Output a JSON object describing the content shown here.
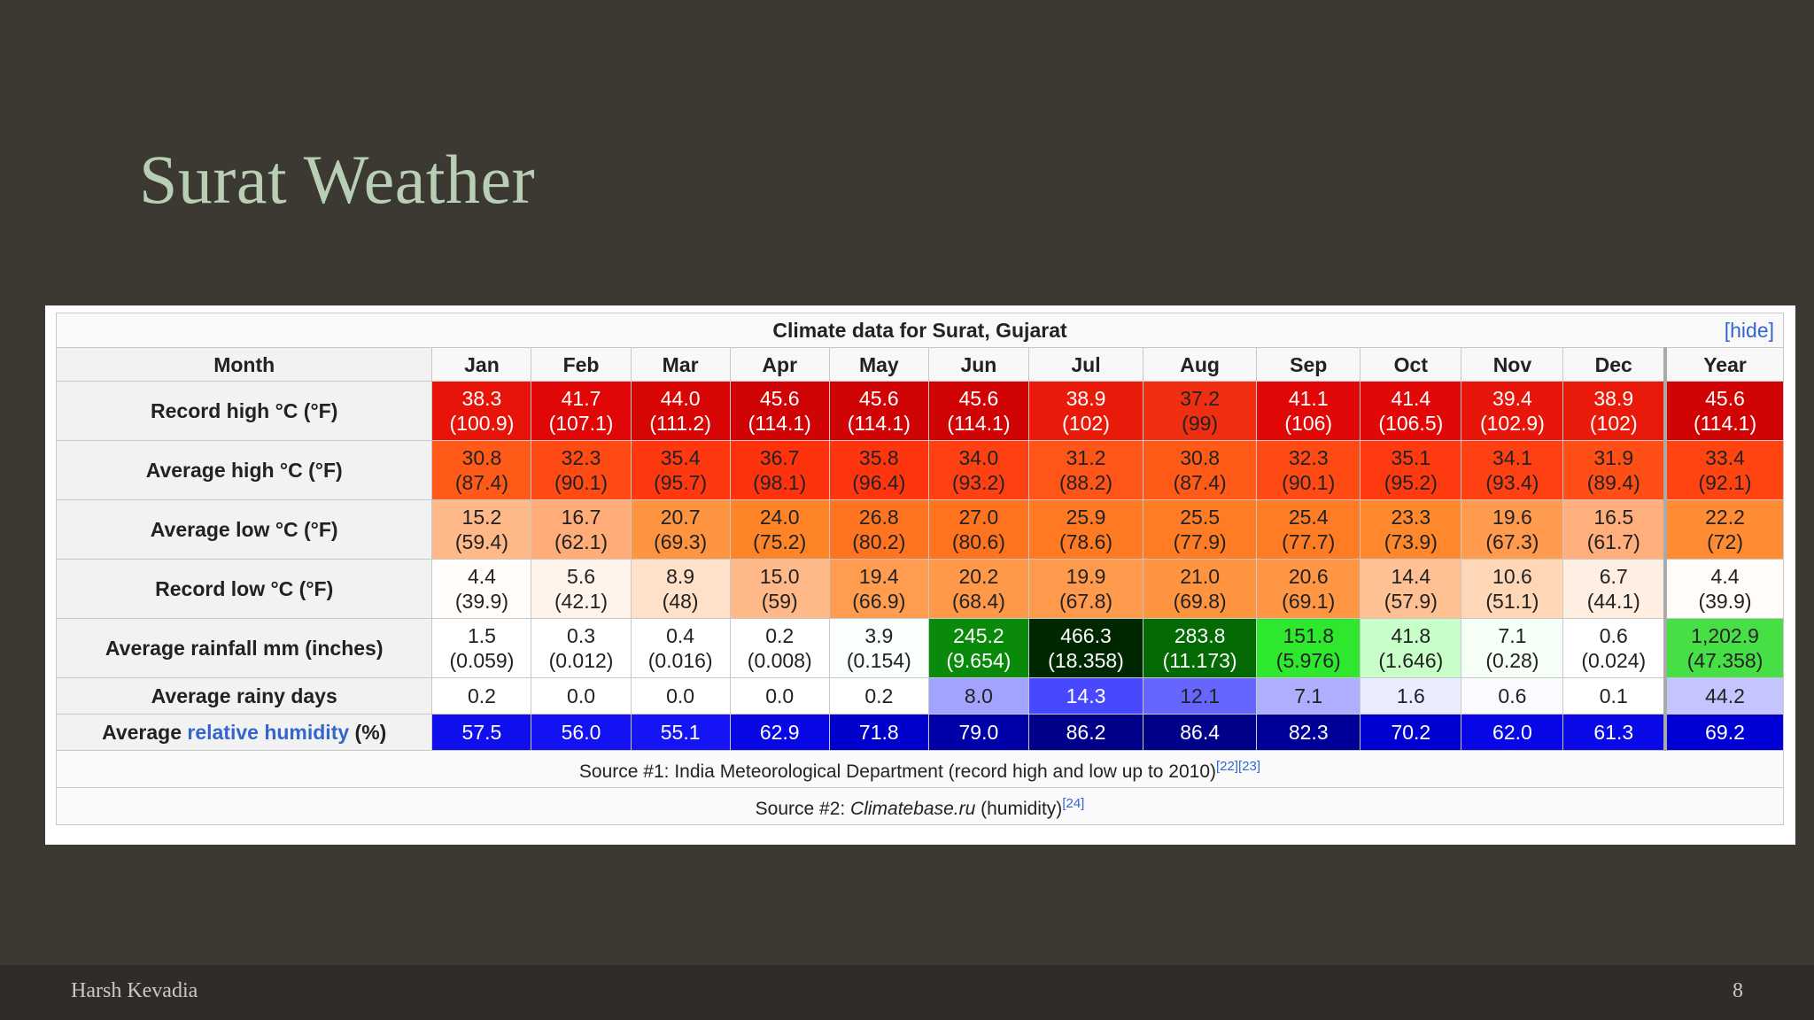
{
  "slide": {
    "title": "Surat Weather",
    "footer_author": "Harsh Kevadia",
    "page_number": "8"
  },
  "table": {
    "caption": "Climate data for Surat, Gujarat",
    "hide_label": "[hide]",
    "header": [
      "Month",
      "Jan",
      "Feb",
      "Mar",
      "Apr",
      "May",
      "Jun",
      "Jul",
      "Aug",
      "Sep",
      "Oct",
      "Nov",
      "Dec",
      "Year"
    ],
    "rows": [
      {
        "label": "Record high °C (°F)",
        "cells": [
          {
            "c": "38.3",
            "f": "(100.9)",
            "bg": "#e8140a",
            "fg": "#ffffff"
          },
          {
            "c": "41.7",
            "f": "(107.1)",
            "bg": "#e10707",
            "fg": "#ffffff"
          },
          {
            "c": "44.0",
            "f": "(111.2)",
            "bg": "#d80505",
            "fg": "#ffffff"
          },
          {
            "c": "45.6",
            "f": "(114.1)",
            "bg": "#d00404",
            "fg": "#ffffff"
          },
          {
            "c": "45.6",
            "f": "(114.1)",
            "bg": "#d00404",
            "fg": "#ffffff"
          },
          {
            "c": "45.6",
            "f": "(114.1)",
            "bg": "#d00404",
            "fg": "#ffffff"
          },
          {
            "c": "38.9",
            "f": "(102)",
            "bg": "#ea1a0a",
            "fg": "#ffffff"
          },
          {
            "c": "37.2",
            "f": "(99)",
            "bg": "#f02e12",
            "fg": "#222222"
          },
          {
            "c": "41.1",
            "f": "(106)",
            "bg": "#e20808",
            "fg": "#ffffff"
          },
          {
            "c": "41.4",
            "f": "(106.5)",
            "bg": "#e20808",
            "fg": "#ffffff"
          },
          {
            "c": "39.4",
            "f": "(102.9)",
            "bg": "#e8150a",
            "fg": "#ffffff"
          },
          {
            "c": "38.9",
            "f": "(102)",
            "bg": "#ea1a0a",
            "fg": "#ffffff"
          },
          {
            "c": "45.6",
            "f": "(114.1)",
            "bg": "#d00404",
            "fg": "#ffffff"
          }
        ]
      },
      {
        "label": "Average high °C (°F)",
        "cells": [
          {
            "c": "30.8",
            "f": "(87.4)",
            "bg": "#ff5a18",
            "fg": "#222222"
          },
          {
            "c": "32.3",
            "f": "(90.1)",
            "bg": "#ff4a14",
            "fg": "#222222"
          },
          {
            "c": "35.4",
            "f": "(95.7)",
            "bg": "#ff3810",
            "fg": "#222222"
          },
          {
            "c": "36.7",
            "f": "(98.1)",
            "bg": "#ff320e",
            "fg": "#222222"
          },
          {
            "c": "35.8",
            "f": "(96.4)",
            "bg": "#ff3510",
            "fg": "#222222"
          },
          {
            "c": "34.0",
            "f": "(93.2)",
            "bg": "#ff4012",
            "fg": "#222222"
          },
          {
            "c": "31.2",
            "f": "(88.2)",
            "bg": "#ff5518",
            "fg": "#222222"
          },
          {
            "c": "30.8",
            "f": "(87.4)",
            "bg": "#ff5a18",
            "fg": "#222222"
          },
          {
            "c": "32.3",
            "f": "(90.1)",
            "bg": "#ff4a14",
            "fg": "#222222"
          },
          {
            "c": "35.1",
            "f": "(95.2)",
            "bg": "#ff3a10",
            "fg": "#222222"
          },
          {
            "c": "34.1",
            "f": "(93.4)",
            "bg": "#ff4012",
            "fg": "#222222"
          },
          {
            "c": "31.9",
            "f": "(89.4)",
            "bg": "#ff4e16",
            "fg": "#222222"
          },
          {
            "c": "33.4",
            "f": "(92.1)",
            "bg": "#ff4412",
            "fg": "#222222"
          }
        ]
      },
      {
        "label": "Average low °C (°F)",
        "cells": [
          {
            "c": "15.2",
            "f": "(59.4)",
            "bg": "#ffb888",
            "fg": "#222222"
          },
          {
            "c": "16.7",
            "f": "(62.1)",
            "bg": "#ffac78",
            "fg": "#222222"
          },
          {
            "c": "20.7",
            "f": "(69.3)",
            "bg": "#ff9440",
            "fg": "#222222"
          },
          {
            "c": "24.0",
            "f": "(75.2)",
            "bg": "#ff8428",
            "fg": "#222222"
          },
          {
            "c": "26.8",
            "f": "(80.2)",
            "bg": "#ff7420",
            "fg": "#222222"
          },
          {
            "c": "27.0",
            "f": "(80.6)",
            "bg": "#ff721e",
            "fg": "#222222"
          },
          {
            "c": "25.9",
            "f": "(78.6)",
            "bg": "#ff7a22",
            "fg": "#222222"
          },
          {
            "c": "25.5",
            "f": "(77.9)",
            "bg": "#ff7c24",
            "fg": "#222222"
          },
          {
            "c": "25.4",
            "f": "(77.7)",
            "bg": "#ff7c24",
            "fg": "#222222"
          },
          {
            "c": "23.3",
            "f": "(73.9)",
            "bg": "#ff882c",
            "fg": "#222222"
          },
          {
            "c": "19.6",
            "f": "(67.3)",
            "bg": "#ff9a4e",
            "fg": "#222222"
          },
          {
            "c": "16.5",
            "f": "(61.7)",
            "bg": "#ffae7c",
            "fg": "#222222"
          },
          {
            "c": "22.2",
            "f": "(72)",
            "bg": "#ff8c32",
            "fg": "#222222"
          }
        ]
      },
      {
        "label": "Record low °C (°F)",
        "cells": [
          {
            "c": "4.4",
            "f": "(39.9)",
            "bg": "#fffcfa",
            "fg": "#222222"
          },
          {
            "c": "5.6",
            "f": "(42.1)",
            "bg": "#fff4ec",
            "fg": "#222222"
          },
          {
            "c": "8.9",
            "f": "(48)",
            "bg": "#ffe0c8",
            "fg": "#222222"
          },
          {
            "c": "15.0",
            "f": "(59)",
            "bg": "#ffb888",
            "fg": "#222222"
          },
          {
            "c": "19.4",
            "f": "(66.9)",
            "bg": "#ff9c50",
            "fg": "#222222"
          },
          {
            "c": "20.2",
            "f": "(68.4)",
            "bg": "#ff9848",
            "fg": "#222222"
          },
          {
            "c": "19.9",
            "f": "(67.8)",
            "bg": "#ff9a4c",
            "fg": "#222222"
          },
          {
            "c": "21.0",
            "f": "(69.8)",
            "bg": "#ff9440",
            "fg": "#222222"
          },
          {
            "c": "20.6",
            "f": "(69.1)",
            "bg": "#ff9644",
            "fg": "#222222"
          },
          {
            "c": "14.4",
            "f": "(57.9)",
            "bg": "#ffc094",
            "fg": "#222222"
          },
          {
            "c": "10.6",
            "f": "(51.1)",
            "bg": "#ffd6b6",
            "fg": "#222222"
          },
          {
            "c": "6.7",
            "f": "(44.1)",
            "bg": "#ffeee2",
            "fg": "#222222"
          },
          {
            "c": "4.4",
            "f": "(39.9)",
            "bg": "#fffcfa",
            "fg": "#222222"
          }
        ]
      },
      {
        "label": "Average rainfall mm (inches)",
        "cells": [
          {
            "c": "1.5",
            "f": "(0.059)",
            "bg": "#ffffff",
            "fg": "#222222"
          },
          {
            "c": "0.3",
            "f": "(0.012)",
            "bg": "#ffffff",
            "fg": "#222222"
          },
          {
            "c": "0.4",
            "f": "(0.016)",
            "bg": "#ffffff",
            "fg": "#222222"
          },
          {
            "c": "0.2",
            "f": "(0.008)",
            "bg": "#ffffff",
            "fg": "#222222"
          },
          {
            "c": "3.9",
            "f": "(0.154)",
            "bg": "#fbfffb",
            "fg": "#222222"
          },
          {
            "c": "245.2",
            "f": "(9.654)",
            "bg": "#0a8a0a",
            "fg": "#ffffff"
          },
          {
            "c": "466.3",
            "f": "(18.358)",
            "bg": "#002800",
            "fg": "#ffffff"
          },
          {
            "c": "283.8",
            "f": "(11.173)",
            "bg": "#046a04",
            "fg": "#ffffff"
          },
          {
            "c": "151.8",
            "f": "(5.976)",
            "bg": "#2ee82e",
            "fg": "#222222"
          },
          {
            "c": "41.8",
            "f": "(1.646)",
            "bg": "#c8ffc8",
            "fg": "#222222"
          },
          {
            "c": "7.1",
            "f": "(0.28)",
            "bg": "#f6fff6",
            "fg": "#222222"
          },
          {
            "c": "0.6",
            "f": "(0.024)",
            "bg": "#ffffff",
            "fg": "#222222"
          },
          {
            "c": "1,202.9",
            "f": "(47.358)",
            "bg": "#46e046",
            "fg": "#222222"
          }
        ]
      },
      {
        "label": "Average rainy days",
        "cells": [
          {
            "c": "0.2",
            "bg": "#ffffff",
            "fg": "#222222"
          },
          {
            "c": "0.0",
            "bg": "#ffffff",
            "fg": "#222222"
          },
          {
            "c": "0.0",
            "bg": "#ffffff",
            "fg": "#222222"
          },
          {
            "c": "0.0",
            "bg": "#ffffff",
            "fg": "#222222"
          },
          {
            "c": "0.2",
            "bg": "#ffffff",
            "fg": "#222222"
          },
          {
            "c": "8.0",
            "bg": "#a2a2ff",
            "fg": "#222222"
          },
          {
            "c": "14.3",
            "bg": "#4848ff",
            "fg": "#ffffff"
          },
          {
            "c": "12.1",
            "bg": "#6666ff",
            "fg": "#222222"
          },
          {
            "c": "7.1",
            "bg": "#aeaeff",
            "fg": "#222222"
          },
          {
            "c": "1.6",
            "bg": "#ececff",
            "fg": "#222222"
          },
          {
            "c": "0.6",
            "bg": "#fafaff",
            "fg": "#222222"
          },
          {
            "c": "0.1",
            "bg": "#ffffff",
            "fg": "#222222"
          },
          {
            "c": "44.2",
            "bg": "#c4c4ff",
            "fg": "#222222"
          }
        ]
      },
      {
        "label_prefix": "Average ",
        "label_link": "relative humidity",
        "label_suffix": " (%)",
        "cells": [
          {
            "c": "57.5",
            "bg": "#1010ee",
            "fg": "#ffffff"
          },
          {
            "c": "56.0",
            "bg": "#1212f2",
            "fg": "#ffffff"
          },
          {
            "c": "55.1",
            "bg": "#1414f4",
            "fg": "#ffffff"
          },
          {
            "c": "62.9",
            "bg": "#0808e4",
            "fg": "#ffffff"
          },
          {
            "c": "71.8",
            "bg": "#0000cc",
            "fg": "#ffffff"
          },
          {
            "c": "79.0",
            "bg": "#0000a8",
            "fg": "#ffffff"
          },
          {
            "c": "86.2",
            "bg": "#00008a",
            "fg": "#ffffff"
          },
          {
            "c": "86.4",
            "bg": "#000088",
            "fg": "#ffffff"
          },
          {
            "c": "82.3",
            "bg": "#000098",
            "fg": "#ffffff"
          },
          {
            "c": "70.2",
            "bg": "#0000d0",
            "fg": "#ffffff"
          },
          {
            "c": "62.0",
            "bg": "#0808e6",
            "fg": "#ffffff"
          },
          {
            "c": "61.3",
            "bg": "#0a0ae8",
            "fg": "#ffffff"
          },
          {
            "c": "69.2",
            "bg": "#0000d4",
            "fg": "#ffffff"
          }
        ]
      }
    ],
    "source1": {
      "text": "Source #1: India Meteorological Department (record high and low up to 2010)",
      "refs": "[22][23]"
    },
    "source2": {
      "prefix": "Source #2: ",
      "site": "Climatebase.ru",
      "suffix": " (humidity)",
      "refs": "[24]"
    }
  }
}
